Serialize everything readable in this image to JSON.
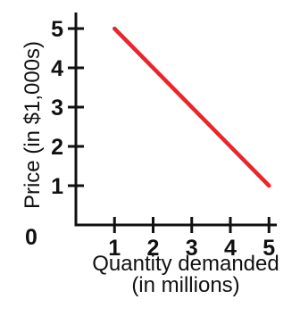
{
  "chart_data": {
    "type": "line",
    "title": "",
    "xlabel_lines": [
      "Quantity demanded",
      "(in millions)"
    ],
    "ylabel": "Price (in $1,000s)",
    "origin_label": "0",
    "x_ticks": [
      1,
      2,
      3,
      4,
      5
    ],
    "y_ticks": [
      1,
      2,
      3,
      4,
      5
    ],
    "xlim": [
      0,
      5
    ],
    "ylim": [
      0,
      5
    ],
    "grid": false,
    "series": [
      {
        "color": "#e8262b",
        "x": [
          1,
          5
        ],
        "y": [
          5,
          1
        ]
      }
    ]
  }
}
